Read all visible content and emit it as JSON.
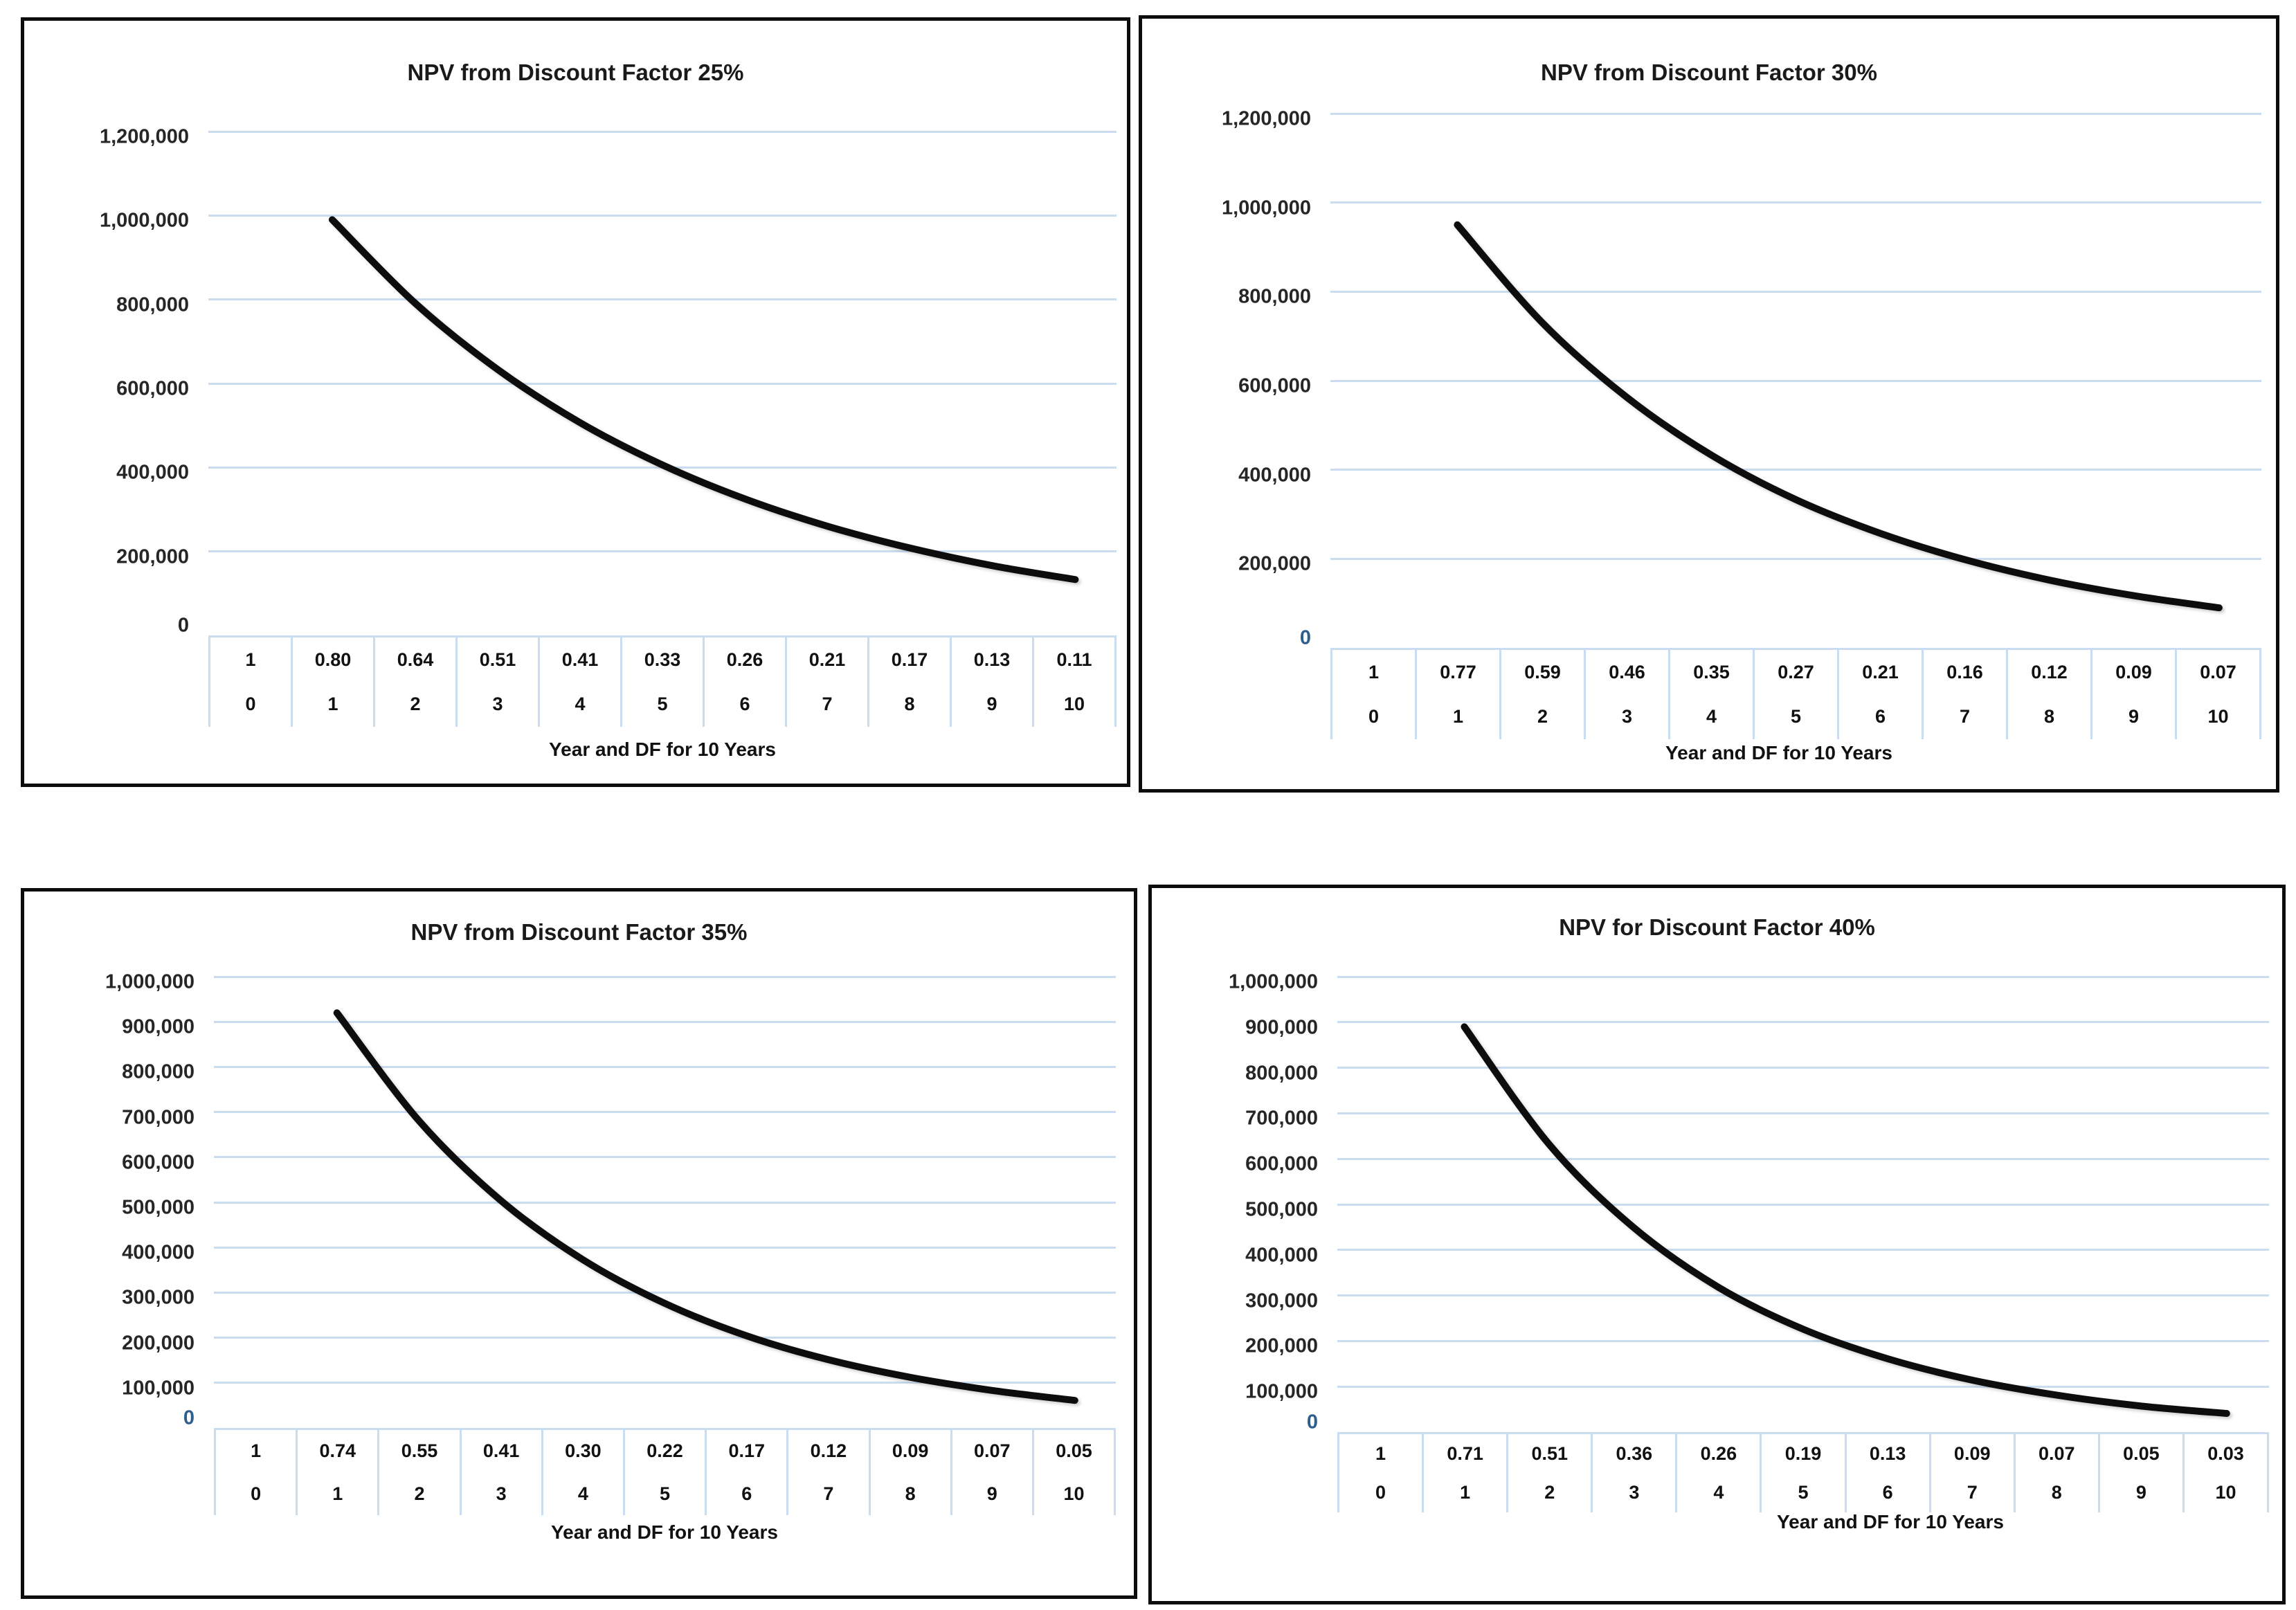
{
  "page": {
    "background": "#ffffff"
  },
  "colors": {
    "gridline": "#c9dcf0",
    "table_border": "#c9dcf0",
    "curve": "#0d0d0d",
    "panel_border": "#0d0d0d",
    "text": "#1a1a1a",
    "zero_blue": "#2e5f8c",
    "zero_black": "#262626"
  },
  "chart_data": [
    {
      "type": "line",
      "title": "NPV from Discount Factor 25%",
      "xlabel": "Year and DF for 10 Years",
      "years": [
        "0",
        "1",
        "2",
        "3",
        "4",
        "5",
        "6",
        "7",
        "8",
        "9",
        "10"
      ],
      "discount_factors": [
        "1",
        "0.80",
        "0.64",
        "0.51",
        "0.41",
        "0.33",
        "0.26",
        "0.21",
        "0.17",
        "0.13",
        "0.11"
      ],
      "value_years": [
        1,
        2,
        3,
        4,
        5,
        6,
        7,
        8,
        9,
        10
      ],
      "npv_values": [
        990000,
        792000,
        634000,
        507000,
        406000,
        325000,
        260000,
        208000,
        166000,
        133000
      ],
      "ylim": [
        0,
        1200000
      ],
      "y_step": 200000,
      "y_ticks": [
        "1,200,000",
        "1,000,000",
        "800,000",
        "600,000",
        "400,000",
        "200,000"
      ],
      "zero_tick": "0",
      "zero_tick_color": "#262626",
      "grid": true,
      "legend": "none",
      "line_color": "#0d0d0d"
    },
    {
      "type": "line",
      "title": "NPV from Discount Factor 30%",
      "xlabel": "Year and DF for 10 Years",
      "years": [
        "0",
        "1",
        "2",
        "3",
        "4",
        "5",
        "6",
        "7",
        "8",
        "9",
        "10"
      ],
      "discount_factors": [
        "1",
        "0.77",
        "0.59",
        "0.46",
        "0.35",
        "0.27",
        "0.21",
        "0.16",
        "0.12",
        "0.09",
        "0.07"
      ],
      "value_years": [
        1,
        2,
        3,
        4,
        5,
        6,
        7,
        8,
        9,
        10
      ],
      "npv_values": [
        950000,
        731000,
        563000,
        433000,
        333000,
        257000,
        198000,
        152000,
        117000,
        90000
      ],
      "ylim": [
        0,
        1200000
      ],
      "y_step": 200000,
      "y_ticks": [
        "1,200,000",
        "1,000,000",
        "800,000",
        "600,000",
        "400,000",
        "200,000"
      ],
      "zero_tick": "0",
      "zero_tick_color": "#2e5f8c",
      "grid": true,
      "legend": "none",
      "line_color": "#0d0d0d"
    },
    {
      "type": "line",
      "title": "NPV from Discount Factor 35%",
      "xlabel": "Year and DF for 10 Years",
      "years": [
        "0",
        "1",
        "2",
        "3",
        "4",
        "5",
        "6",
        "7",
        "8",
        "9",
        "10"
      ],
      "discount_factors": [
        "1",
        "0.74",
        "0.55",
        "0.41",
        "0.30",
        "0.22",
        "0.17",
        "0.12",
        "0.09",
        "0.07",
        "0.05"
      ],
      "value_years": [
        1,
        2,
        3,
        4,
        5,
        6,
        7,
        8,
        9,
        10
      ],
      "npv_values": [
        920000,
        681000,
        504000,
        373000,
        276000,
        204000,
        151000,
        112000,
        83000,
        61000
      ],
      "ylim": [
        0,
        1000000
      ],
      "y_step": 100000,
      "y_ticks": [
        "1,000,000",
        "900,000",
        "800,000",
        "700,000",
        "600,000",
        "500,000",
        "400,000",
        "300,000",
        "200,000",
        "100,000"
      ],
      "zero_tick": "0",
      "zero_tick_color": "#2e5f8c",
      "grid": true,
      "legend": "none",
      "line_color": "#0d0d0d"
    },
    {
      "type": "line",
      "title": "NPV for Discount Factor 40%",
      "xlabel": "Year and DF for 10 Years",
      "years": [
        "0",
        "1",
        "2",
        "3",
        "4",
        "5",
        "6",
        "7",
        "8",
        "9",
        "10"
      ],
      "discount_factors": [
        "1",
        "0.71",
        "0.51",
        "0.36",
        "0.26",
        "0.19",
        "0.13",
        "0.09",
        "0.07",
        "0.05",
        "0.03"
      ],
      "value_years": [
        1,
        2,
        3,
        4,
        5,
        6,
        7,
        8,
        9,
        10
      ],
      "npv_values": [
        890000,
        632000,
        449000,
        318000,
        226000,
        161000,
        114000,
        81000,
        57000,
        41000
      ],
      "ylim": [
        0,
        1000000
      ],
      "y_step": 100000,
      "y_ticks": [
        "1,000,000",
        "900,000",
        "800,000",
        "700,000",
        "600,000",
        "500,000",
        "400,000",
        "300,000",
        "200,000",
        "100,000"
      ],
      "zero_tick": "0",
      "zero_tick_color": "#2e5f8c",
      "grid": true,
      "legend": "none",
      "line_color": "#0d0d0d"
    }
  ]
}
